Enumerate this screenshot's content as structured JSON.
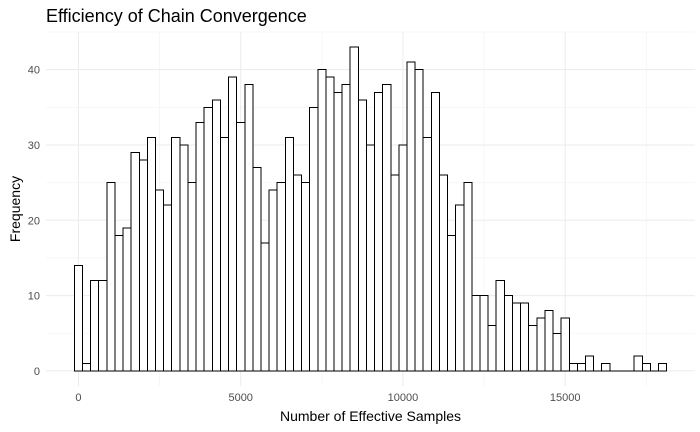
{
  "chart_data": {
    "type": "bar",
    "title": "Efficiency of Chain Convergence",
    "xlabel": "Number of Effective Samples",
    "ylabel": "Frequency",
    "bin_width": 250,
    "x_start": 0,
    "bin_start": -125,
    "values": [
      14,
      1,
      12,
      12,
      25,
      18,
      19,
      29,
      28,
      31,
      24,
      22,
      31,
      30,
      25,
      33,
      35,
      36,
      31,
      39,
      33,
      38,
      27,
      17,
      24,
      25,
      31,
      26,
      25,
      35,
      40,
      39,
      37,
      38,
      43,
      36,
      30,
      37,
      38,
      26,
      30,
      41,
      40,
      31,
      37,
      26,
      18,
      22,
      25,
      10,
      10,
      6,
      12,
      10,
      9,
      9,
      6,
      7,
      8,
      5,
      7,
      1,
      1,
      2,
      0,
      1,
      0,
      0,
      0,
      2,
      1,
      0,
      1
    ],
    "xlim": [
      -1000,
      19000
    ],
    "ylim": [
      -2,
      45
    ],
    "x_ticks": [
      0,
      5000,
      10000,
      15000
    ],
    "x_tick_labels": [
      "0",
      "5000",
      "10000",
      "15000"
    ],
    "y_ticks": [
      0,
      10,
      20,
      30,
      40
    ],
    "y_tick_labels": [
      "0",
      "10",
      "20",
      "30",
      "40"
    ],
    "grid": true,
    "colors": {
      "bar_fill": "#ffffff",
      "bar_stroke": "#000000",
      "grid": "#ebebeb"
    }
  }
}
